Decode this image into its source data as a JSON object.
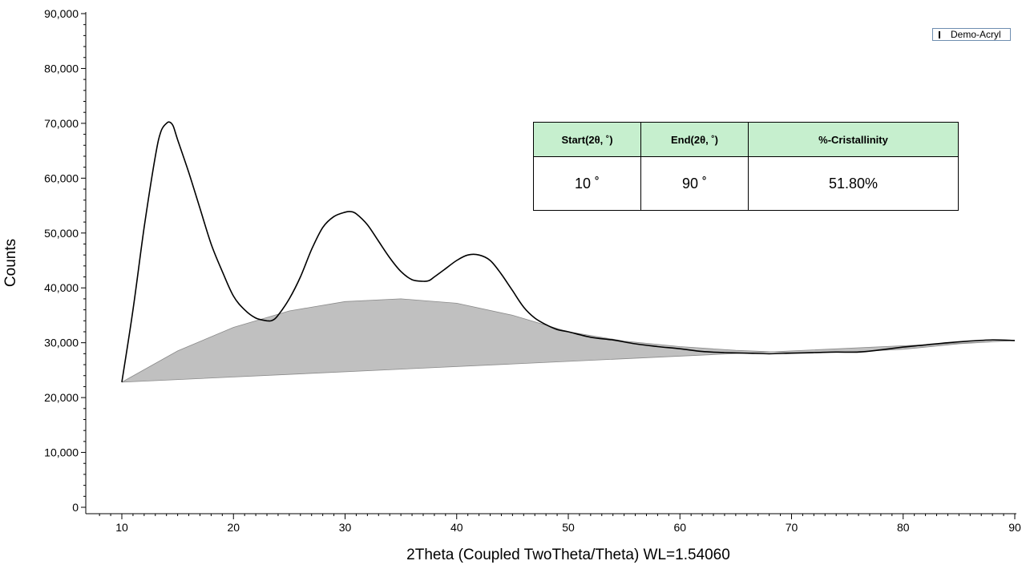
{
  "chart_data": {
    "type": "line",
    "xlabel": "2Theta (Coupled TwoTheta/Theta) WL=1.54060",
    "ylabel": "Counts",
    "xlim": [
      7,
      90
    ],
    "ylim": [
      0,
      90000
    ],
    "x_ticks": [
      10,
      20,
      30,
      40,
      50,
      60,
      70,
      80,
      90
    ],
    "y_ticks": [
      0,
      10000,
      20000,
      30000,
      40000,
      50000,
      60000,
      70000,
      80000,
      90000
    ],
    "y_tick_labels": [
      "0",
      "10,000",
      "20,000",
      "30,000",
      "40,000",
      "50,000",
      "60,000",
      "70,000",
      "80,000",
      "90,000"
    ],
    "legend": {
      "position": "top-right",
      "entries": [
        "Demo-Acryl"
      ]
    },
    "series": [
      {
        "name": "Demo-Acryl",
        "x": [
          10,
          11,
          12,
          13,
          13.5,
          14,
          14.3,
          14.6,
          15,
          16,
          17,
          18,
          19,
          20,
          21,
          22,
          23,
          23.5,
          24,
          25,
          26,
          27,
          28,
          29,
          30,
          30.5,
          31,
          32,
          33,
          34,
          35,
          36,
          37,
          37.5,
          38,
          39,
          40,
          41,
          42,
          43,
          44,
          45,
          46,
          47,
          48,
          49,
          50,
          52,
          54,
          56,
          58,
          60,
          62,
          64,
          66,
          68,
          70,
          72,
          74,
          76,
          78,
          80,
          82,
          84,
          86,
          88,
          90
        ],
        "y": [
          22800,
          36000,
          51000,
          64000,
          68500,
          70000,
          70200,
          69500,
          67000,
          61000,
          54500,
          48000,
          43000,
          38500,
          36000,
          34500,
          34000,
          34100,
          35000,
          38000,
          42000,
          47000,
          51000,
          53000,
          53800,
          53900,
          53500,
          51500,
          48500,
          45500,
          43000,
          41500,
          41200,
          41300,
          42000,
          43500,
          45000,
          46000,
          46000,
          45000,
          42500,
          39500,
          36500,
          34500,
          33300,
          32400,
          32000,
          31000,
          30500,
          29800,
          29300,
          28900,
          28400,
          28200,
          28100,
          28000,
          28100,
          28200,
          28300,
          28300,
          28700,
          29200,
          29600,
          30000,
          30300,
          30500,
          30400
        ]
      }
    ],
    "amorphous_fill": {
      "upper": {
        "x": [
          10,
          15,
          20,
          25,
          30,
          35,
          40,
          45,
          50,
          55,
          60,
          65,
          70,
          75,
          80,
          85,
          90
        ],
        "y": [
          22800,
          28500,
          32800,
          35800,
          37500,
          38000,
          37200,
          35000,
          32000,
          30300,
          29300,
          28600,
          28200,
          28300,
          28800,
          29800,
          30400
        ]
      },
      "lower": {
        "x": [
          10,
          90
        ],
        "y": [
          22800,
          30400
        ]
      }
    },
    "table": {
      "headers": [
        "Start(2θ, ˚)",
        "End(2θ, ˚)",
        "%-Cristallinity"
      ],
      "rows": [
        [
          "10 ˚",
          "90 ˚",
          "51.80%"
        ]
      ]
    }
  },
  "colors": {
    "line": "#000000",
    "amorphous_fill": "#c0c0c0",
    "table_header": "#c6efce",
    "legend_border": "#6f8eb0"
  }
}
